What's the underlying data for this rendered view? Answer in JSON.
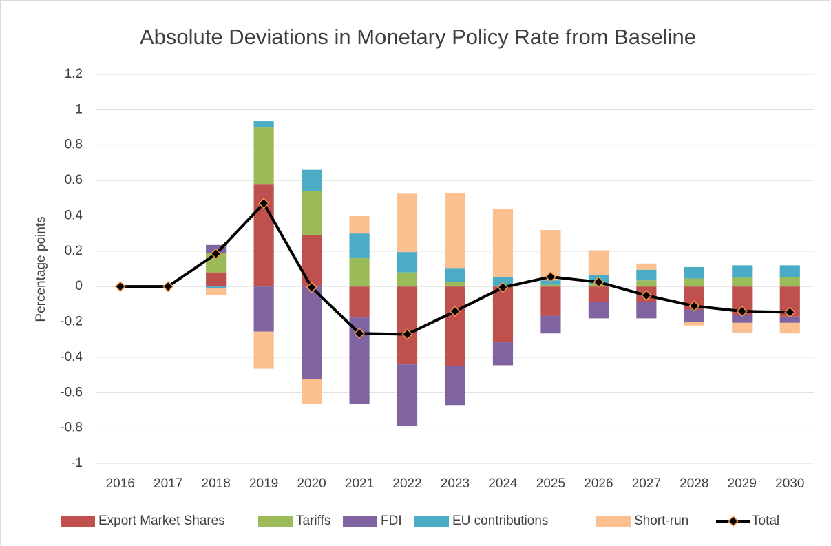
{
  "chart_data": {
    "type": "bar",
    "stacked": true,
    "title": "Absolute Deviations in Monetary Policy Rate from Baseline",
    "y_label": "Percentage points",
    "categories": [
      "2016",
      "2017",
      "2018",
      "2019",
      "2020",
      "2021",
      "2022",
      "2023",
      "2024",
      "2025",
      "2026",
      "2027",
      "2028",
      "2029",
      "2030"
    ],
    "ylim": [
      -1,
      1.2
    ],
    "yticks": [
      -1,
      -0.8,
      -0.6,
      -0.4,
      -0.2,
      0,
      0.2,
      0.4,
      0.6,
      0.8,
      1,
      1.2
    ],
    "grid": true,
    "legend": "bottom",
    "series": [
      {
        "name": "Export Market Shares",
        "color": "#c0504d",
        "values": [
          0,
          0,
          0.08,
          0.58,
          0.29,
          -0.175,
          -0.44,
          -0.45,
          -0.315,
          -0.165,
          -0.085,
          -0.085,
          -0.13,
          -0.16,
          -0.17
        ]
      },
      {
        "name": "Tariffs",
        "color": "#9bbb59",
        "values": [
          0,
          0,
          0.11,
          0.32,
          0.25,
          0.16,
          0.08,
          0.025,
          0.005,
          0.01,
          0.015,
          0.035,
          0.045,
          0.05,
          0.055
        ]
      },
      {
        "name": "FDI",
        "color": "#8064a2",
        "values": [
          0,
          0,
          0.045,
          -0.255,
          -0.525,
          -0.49,
          -0.35,
          -0.22,
          -0.13,
          -0.1,
          -0.095,
          -0.095,
          -0.07,
          -0.045,
          -0.035
        ]
      },
      {
        "name": "EU contributions",
        "color": "#4bacc6",
        "values": [
          0,
          0,
          -0.01,
          0.035,
          0.12,
          0.14,
          0.115,
          0.08,
          0.05,
          0.025,
          0.05,
          0.06,
          0.065,
          0.07,
          0.065
        ]
      },
      {
        "name": "Short-run",
        "color": "#fac090",
        "values": [
          0,
          0,
          -0.04,
          -0.21,
          -0.14,
          0.1,
          0.33,
          0.425,
          0.385,
          0.285,
          0.14,
          0.035,
          -0.02,
          -0.055,
          -0.06
        ]
      },
      {
        "name": "Total",
        "type": "line",
        "color": "#000000",
        "marker_edge": "#f79646",
        "values": [
          0,
          0,
          0.185,
          0.47,
          -0.005,
          -0.265,
          -0.27,
          -0.14,
          -0.005,
          0.055,
          0.025,
          -0.05,
          -0.11,
          -0.14,
          -0.145
        ]
      }
    ]
  }
}
